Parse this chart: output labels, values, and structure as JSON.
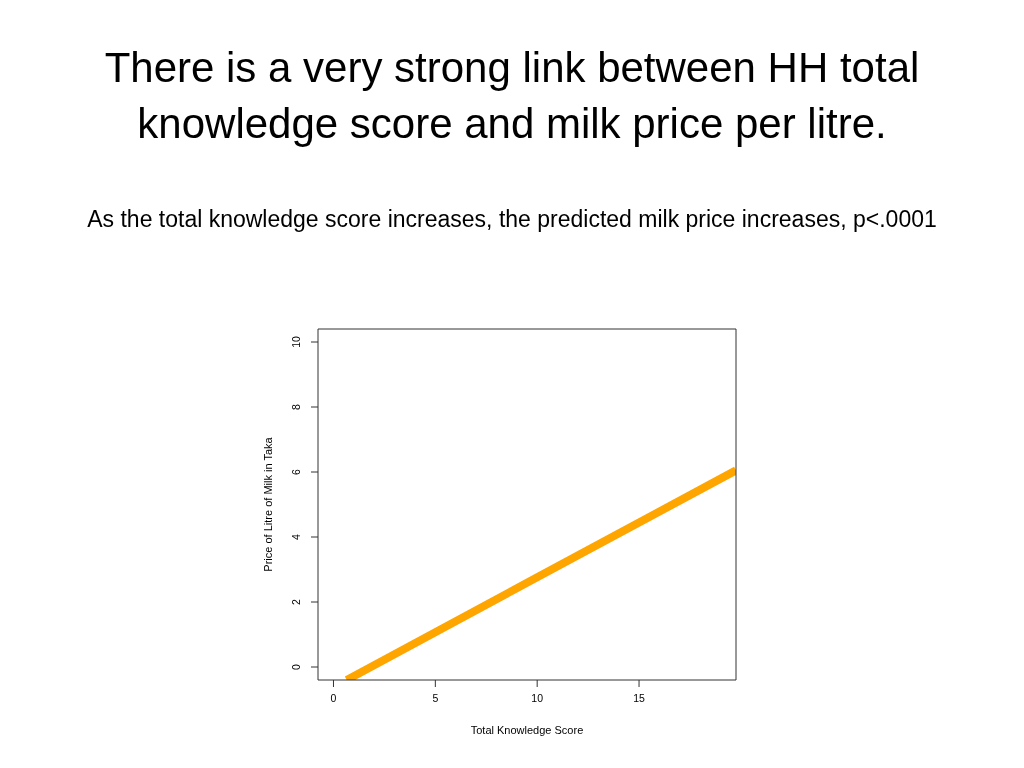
{
  "chart_data": {
    "type": "line",
    "title": "There is a very strong link between HH total knowledge score and milk price per litre.",
    "subtitle": "As the total knowledge score increases, the predicted milk price increases, p<.0001",
    "xlabel": "Total Knowledge Score",
    "ylabel": "Price of Litre of Milk in Taka",
    "x": [
      0.65,
      10,
      19.76
    ],
    "values": [
      -0.4,
      2.76,
      6.05
    ],
    "color": "#ffa500",
    "xlim": [
      -0.76,
      19.76
    ],
    "ylim": [
      -0.4,
      10.4
    ],
    "xticks": [
      0,
      5,
      10,
      15
    ],
    "yticks": [
      0,
      2,
      4,
      6,
      8,
      10
    ],
    "marker": "none",
    "line_style": "solid"
  }
}
